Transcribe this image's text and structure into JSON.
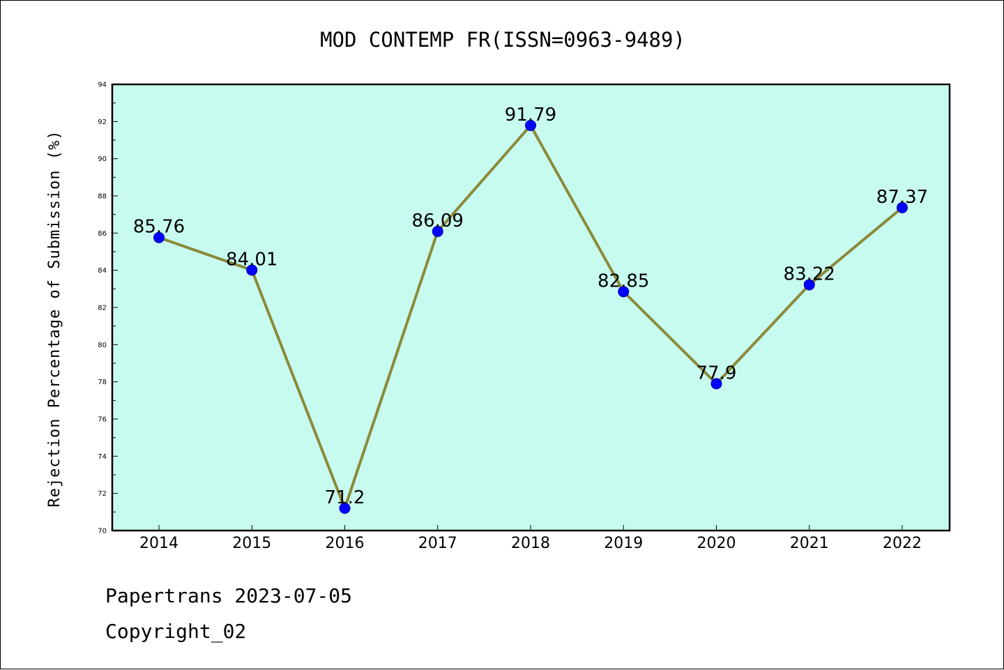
{
  "chart_data": {
    "type": "line",
    "title": "MOD CONTEMP FR(ISSN=0963-9489)",
    "xlabel": "",
    "ylabel": "Rejection Percentage of Submission (%)",
    "categories": [
      "2014",
      "2015",
      "2016",
      "2017",
      "2018",
      "2019",
      "2020",
      "2021",
      "2022"
    ],
    "series": [
      {
        "values": [
          85.76,
          84.01,
          71.2,
          86.09,
          91.79,
          82.85,
          77.9,
          83.22,
          87.37
        ],
        "labels": [
          "85.76",
          "84.01",
          "71.2",
          "86.09",
          "91.79",
          "82.85",
          "77.9",
          "83.22",
          "87.37"
        ]
      }
    ],
    "ylim": [
      70,
      94
    ],
    "yticks": [
      "70",
      "72",
      "74",
      "76",
      "78",
      "80",
      "82",
      "84",
      "86",
      "88",
      "90",
      "92",
      "94"
    ],
    "grid": false,
    "colors": {
      "plot_background": "#c8fbef",
      "line": "#8b8a3a",
      "marker": "#0000ff"
    }
  },
  "footer": {
    "line1": "Papertrans 2023-07-05",
    "line2": "Copyright_02"
  }
}
